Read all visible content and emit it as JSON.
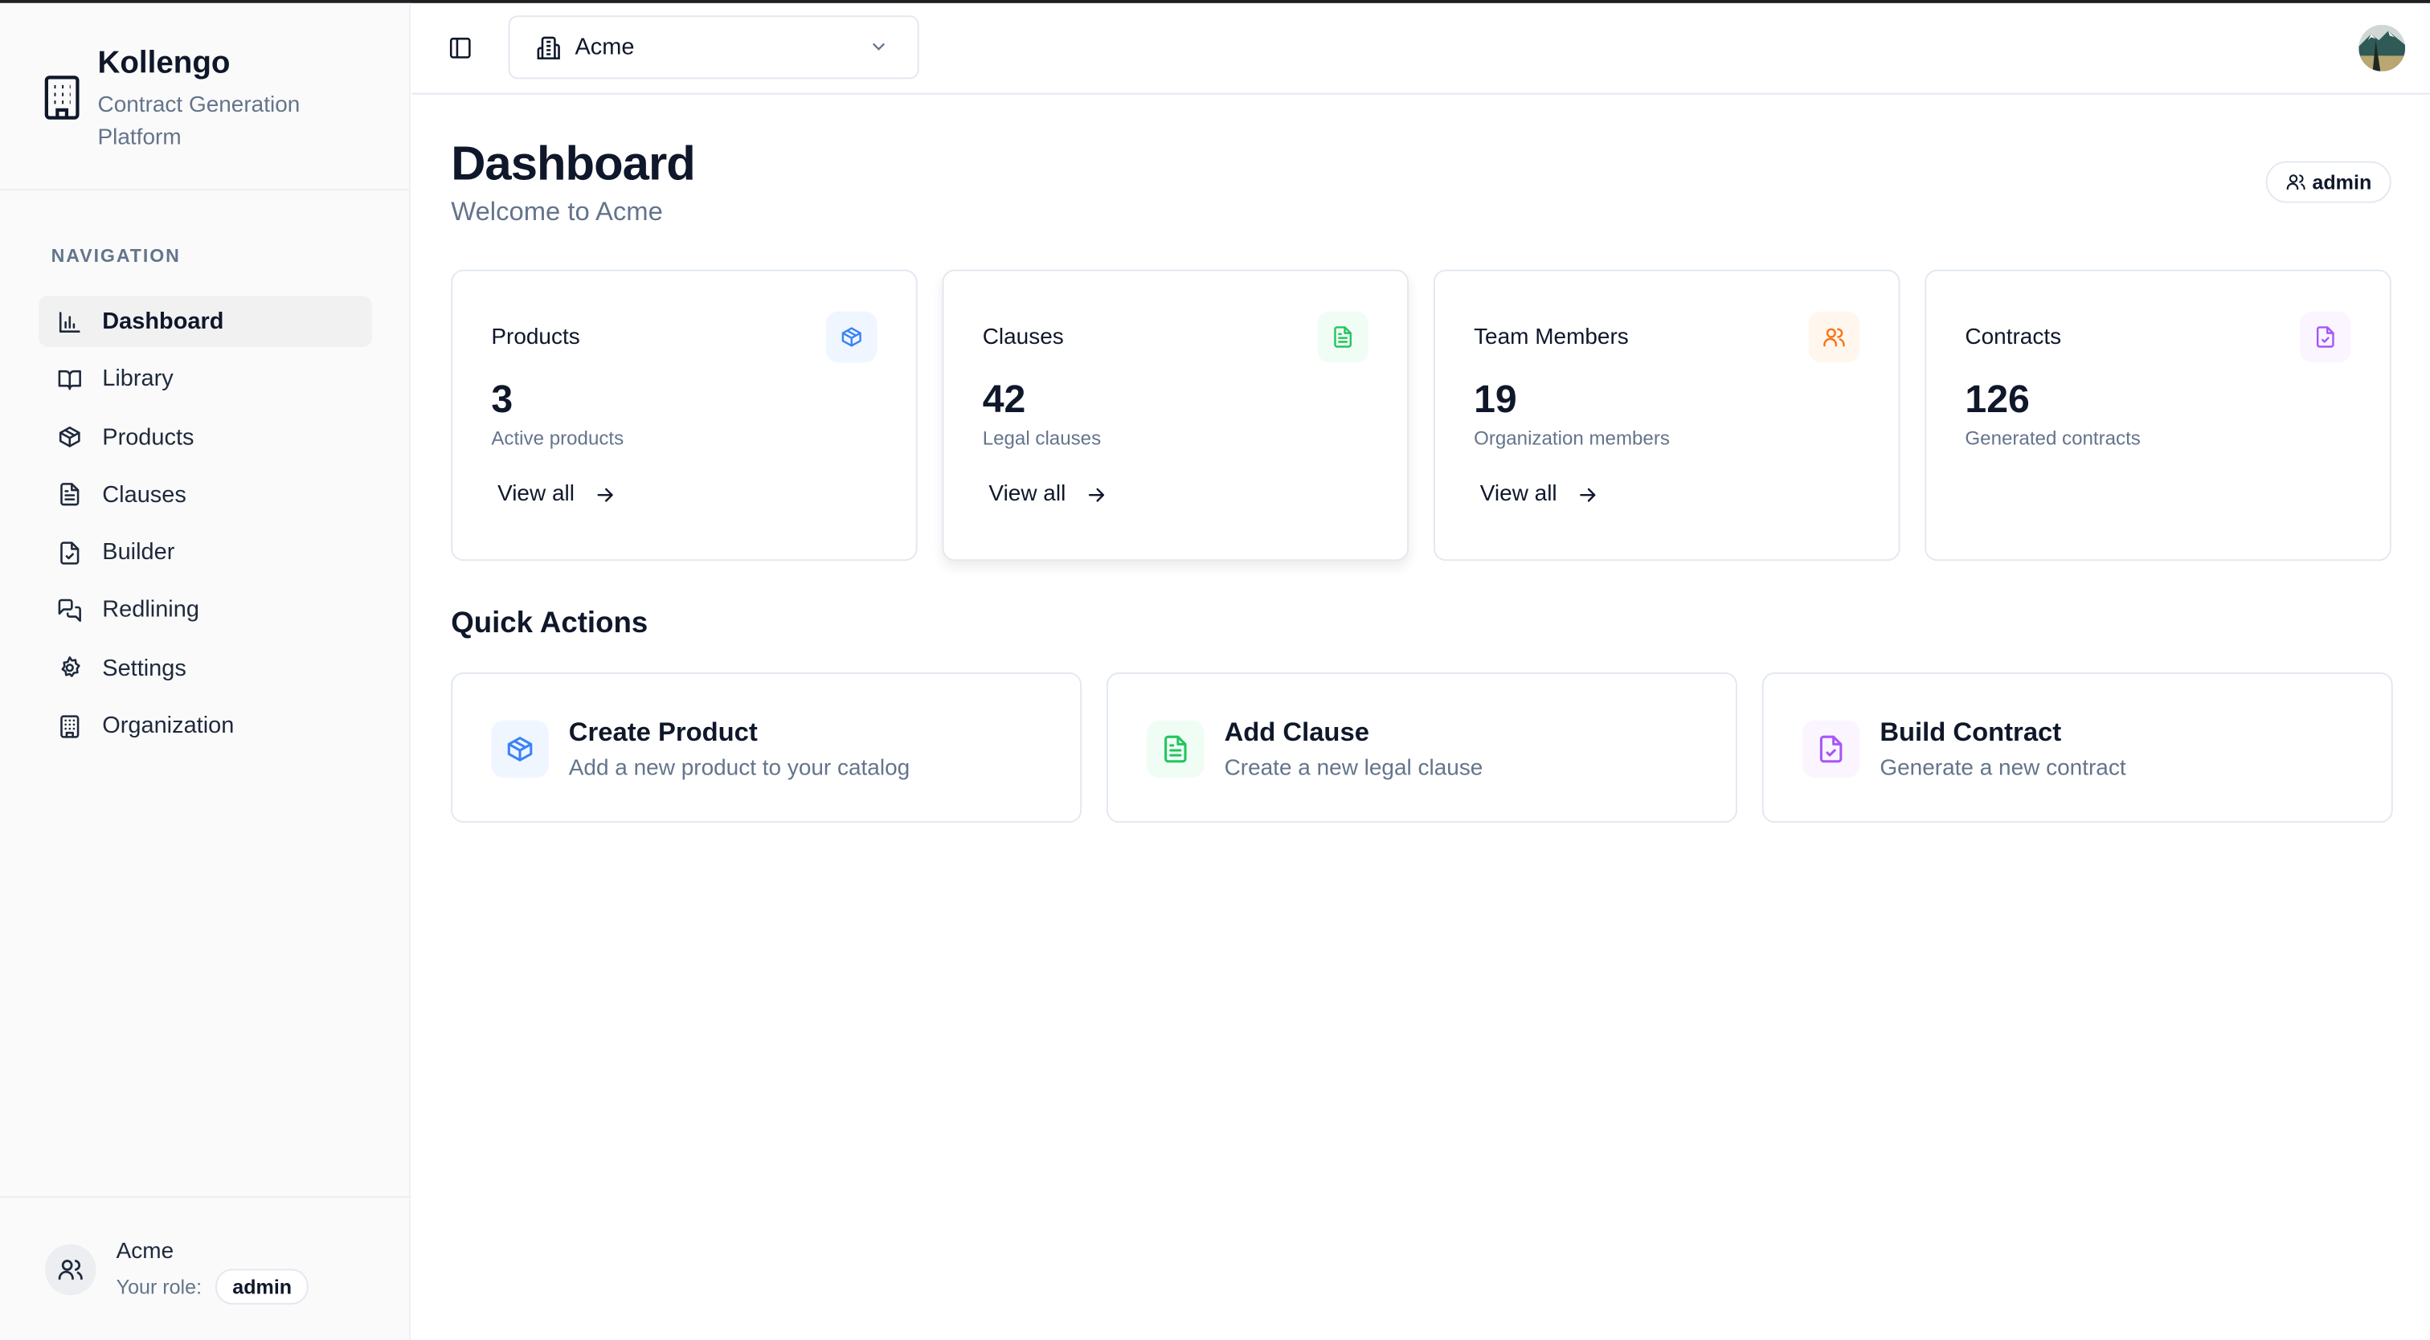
{
  "brand": {
    "name": "Kollengo",
    "subtitle": "Contract Generation Platform"
  },
  "sidebar": {
    "nav_label": "NAVIGATION",
    "items": [
      {
        "label": "Dashboard",
        "icon": "bar-chart-icon",
        "active": true
      },
      {
        "label": "Library",
        "icon": "book-open-icon"
      },
      {
        "label": "Products",
        "icon": "package-icon"
      },
      {
        "label": "Clauses",
        "icon": "file-text-icon"
      },
      {
        "label": "Builder",
        "icon": "file-check-icon"
      },
      {
        "label": "Redlining",
        "icon": "messages-icon"
      },
      {
        "label": "Settings",
        "icon": "gear-icon"
      },
      {
        "label": "Organization",
        "icon": "building-icon"
      }
    ],
    "footer": {
      "org": "Acme",
      "role_label": "Your role:",
      "role": "admin"
    }
  },
  "topbar": {
    "org_select": "Acme"
  },
  "main": {
    "title": "Dashboard",
    "welcome": "Welcome to Acme",
    "role_badge": "admin",
    "cards": [
      {
        "title": "Products",
        "value": "3",
        "desc": "Active products",
        "link": "View all",
        "icon": "package-icon",
        "color": "#3b82f6",
        "bg": "#eff6ff"
      },
      {
        "title": "Clauses",
        "value": "42",
        "desc": "Legal clauses",
        "link": "View all",
        "icon": "file-text-icon",
        "color": "#22c55e",
        "bg": "#f0fdf4"
      },
      {
        "title": "Team Members",
        "value": "19",
        "desc": "Organization members",
        "link": "View all",
        "icon": "users-icon",
        "color": "#f97316",
        "bg": "#fff7ed"
      },
      {
        "title": "Contracts",
        "value": "126",
        "desc": "Generated contracts",
        "icon": "file-check-icon",
        "color": "#a855f7",
        "bg": "#faf5ff"
      }
    ],
    "quick_actions_title": "Quick Actions",
    "quick_actions": [
      {
        "title": "Create Product",
        "desc": "Add a new product to your catalog",
        "icon": "package-icon",
        "color": "#3b82f6",
        "bg": "#eff6ff"
      },
      {
        "title": "Add Clause",
        "desc": "Create a new legal clause",
        "icon": "file-text-icon",
        "color": "#22c55e",
        "bg": "#f0fdf4"
      },
      {
        "title": "Build Contract",
        "desc": "Generate a new contract",
        "icon": "file-check-icon",
        "color": "#a855f7",
        "bg": "#faf5ff"
      }
    ]
  }
}
